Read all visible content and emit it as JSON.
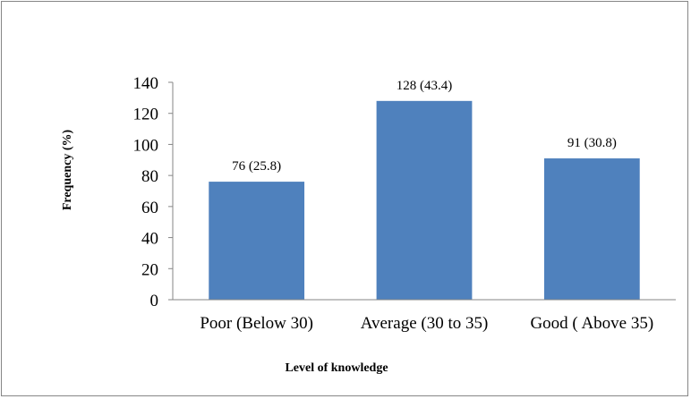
{
  "chart_data": {
    "type": "bar",
    "categories": [
      "Poor (Below 30)",
      "Average (30 to 35)",
      "Good ( Above 35)"
    ],
    "values": [
      76,
      128,
      91
    ],
    "data_labels": [
      "76 (25.8)",
      "128 (43.4)",
      "91 (30.8)"
    ],
    "title": "",
    "xlabel": "Level of knowledge",
    "ylabel": "Frequency (%)",
    "ylim": [
      0,
      140
    ],
    "yticks": [
      0,
      20,
      40,
      60,
      80,
      100,
      120,
      140
    ],
    "grid": false,
    "legend": "none",
    "bar_color": "#4F81BD",
    "axis_color": "#868686"
  }
}
